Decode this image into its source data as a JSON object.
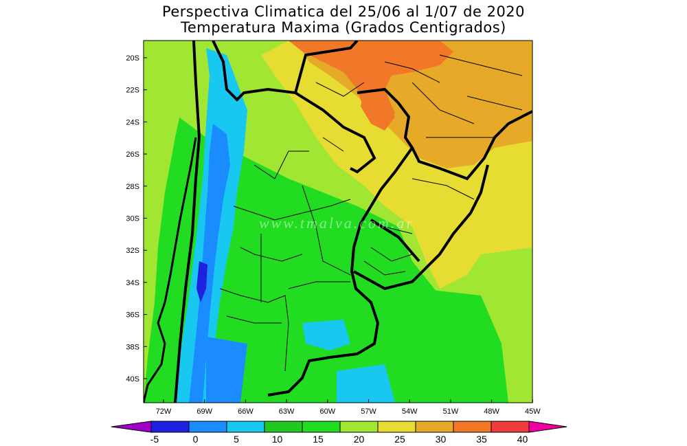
{
  "title_line1": "Perspectiva Climatica del 25/06 al 1/07 de 2020",
  "title_line2": "Temperatura Maxima (Grados Centigrados)",
  "watermark": "www.tmalva.com.ar",
  "lat_ticks": [
    "20S",
    "22S",
    "24S",
    "26S",
    "28S",
    "30S",
    "32S",
    "34S",
    "36S",
    "38S",
    "40S"
  ],
  "lon_ticks": [
    "72W",
    "69W",
    "66W",
    "63W",
    "60W",
    "57W",
    "54W",
    "51W",
    "48W",
    "45W"
  ],
  "colorbar": {
    "labels": [
      "-5",
      "0",
      "5",
      "10",
      "15",
      "20",
      "25",
      "30",
      "35",
      "40"
    ],
    "colors": [
      "#a000c8",
      "#2020e0",
      "#1a8cff",
      "#19c8f0",
      "#20c820",
      "#22dc22",
      "#a0e632",
      "#e6dc32",
      "#e6aa28",
      "#f07828",
      "#f03c3c",
      "#f000a0"
    ]
  }
}
